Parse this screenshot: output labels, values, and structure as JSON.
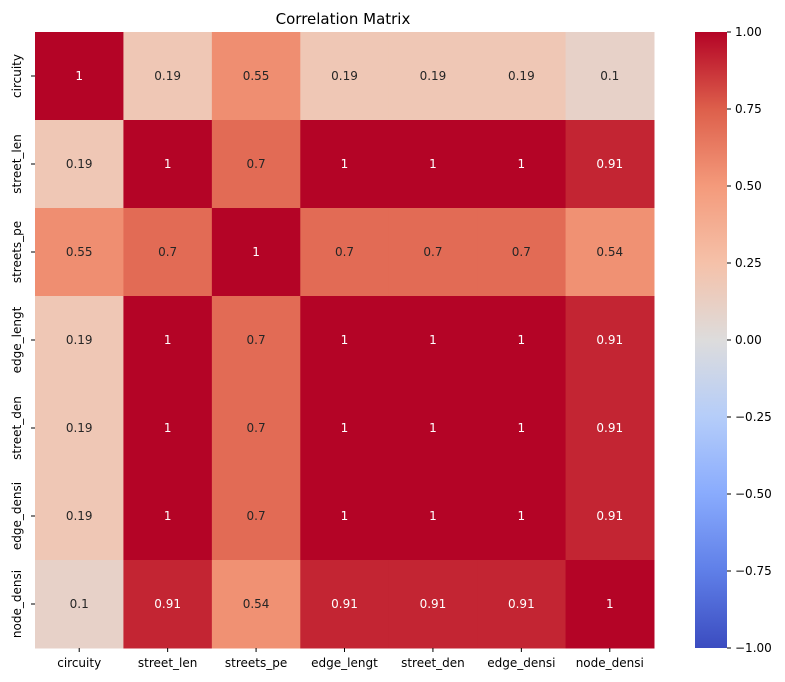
{
  "chart_data": {
    "type": "heatmap",
    "title": "Correlation Matrix",
    "xlabel": "",
    "ylabel": "",
    "x_labels": [
      "circuity",
      "street_len",
      "streets_pe",
      "edge_lengt",
      "street_den",
      "edge_densi",
      "node_densi"
    ],
    "y_labels": [
      "circuity",
      "street_len",
      "streets_pe",
      "edge_lengt",
      "street_den",
      "edge_densi",
      "node_densi"
    ],
    "values": [
      [
        1,
        0.19,
        0.55,
        0.19,
        0.19,
        0.19,
        0.1
      ],
      [
        0.19,
        1,
        0.7,
        1,
        1,
        1,
        0.91
      ],
      [
        0.55,
        0.7,
        1,
        0.7,
        0.7,
        0.7,
        0.54
      ],
      [
        0.19,
        1,
        0.7,
        1,
        1,
        1,
        0.91
      ],
      [
        0.19,
        1,
        0.7,
        1,
        1,
        1,
        0.91
      ],
      [
        0.19,
        1,
        0.7,
        1,
        1,
        1,
        0.91
      ],
      [
        0.1,
        0.91,
        0.54,
        0.91,
        0.91,
        0.91,
        1
      ]
    ],
    "colormap": "coolwarm",
    "vmin": -1,
    "vmax": 1,
    "colorbar_ticks": [
      "1.00",
      "0.75",
      "0.50",
      "0.25",
      "0.00",
      "−0.25",
      "−0.50",
      "−0.75",
      "−1.00"
    ],
    "colorbar_values": [
      1,
      0.75,
      0.5,
      0.25,
      0,
      -0.25,
      -0.5,
      -0.75,
      -1
    ]
  }
}
